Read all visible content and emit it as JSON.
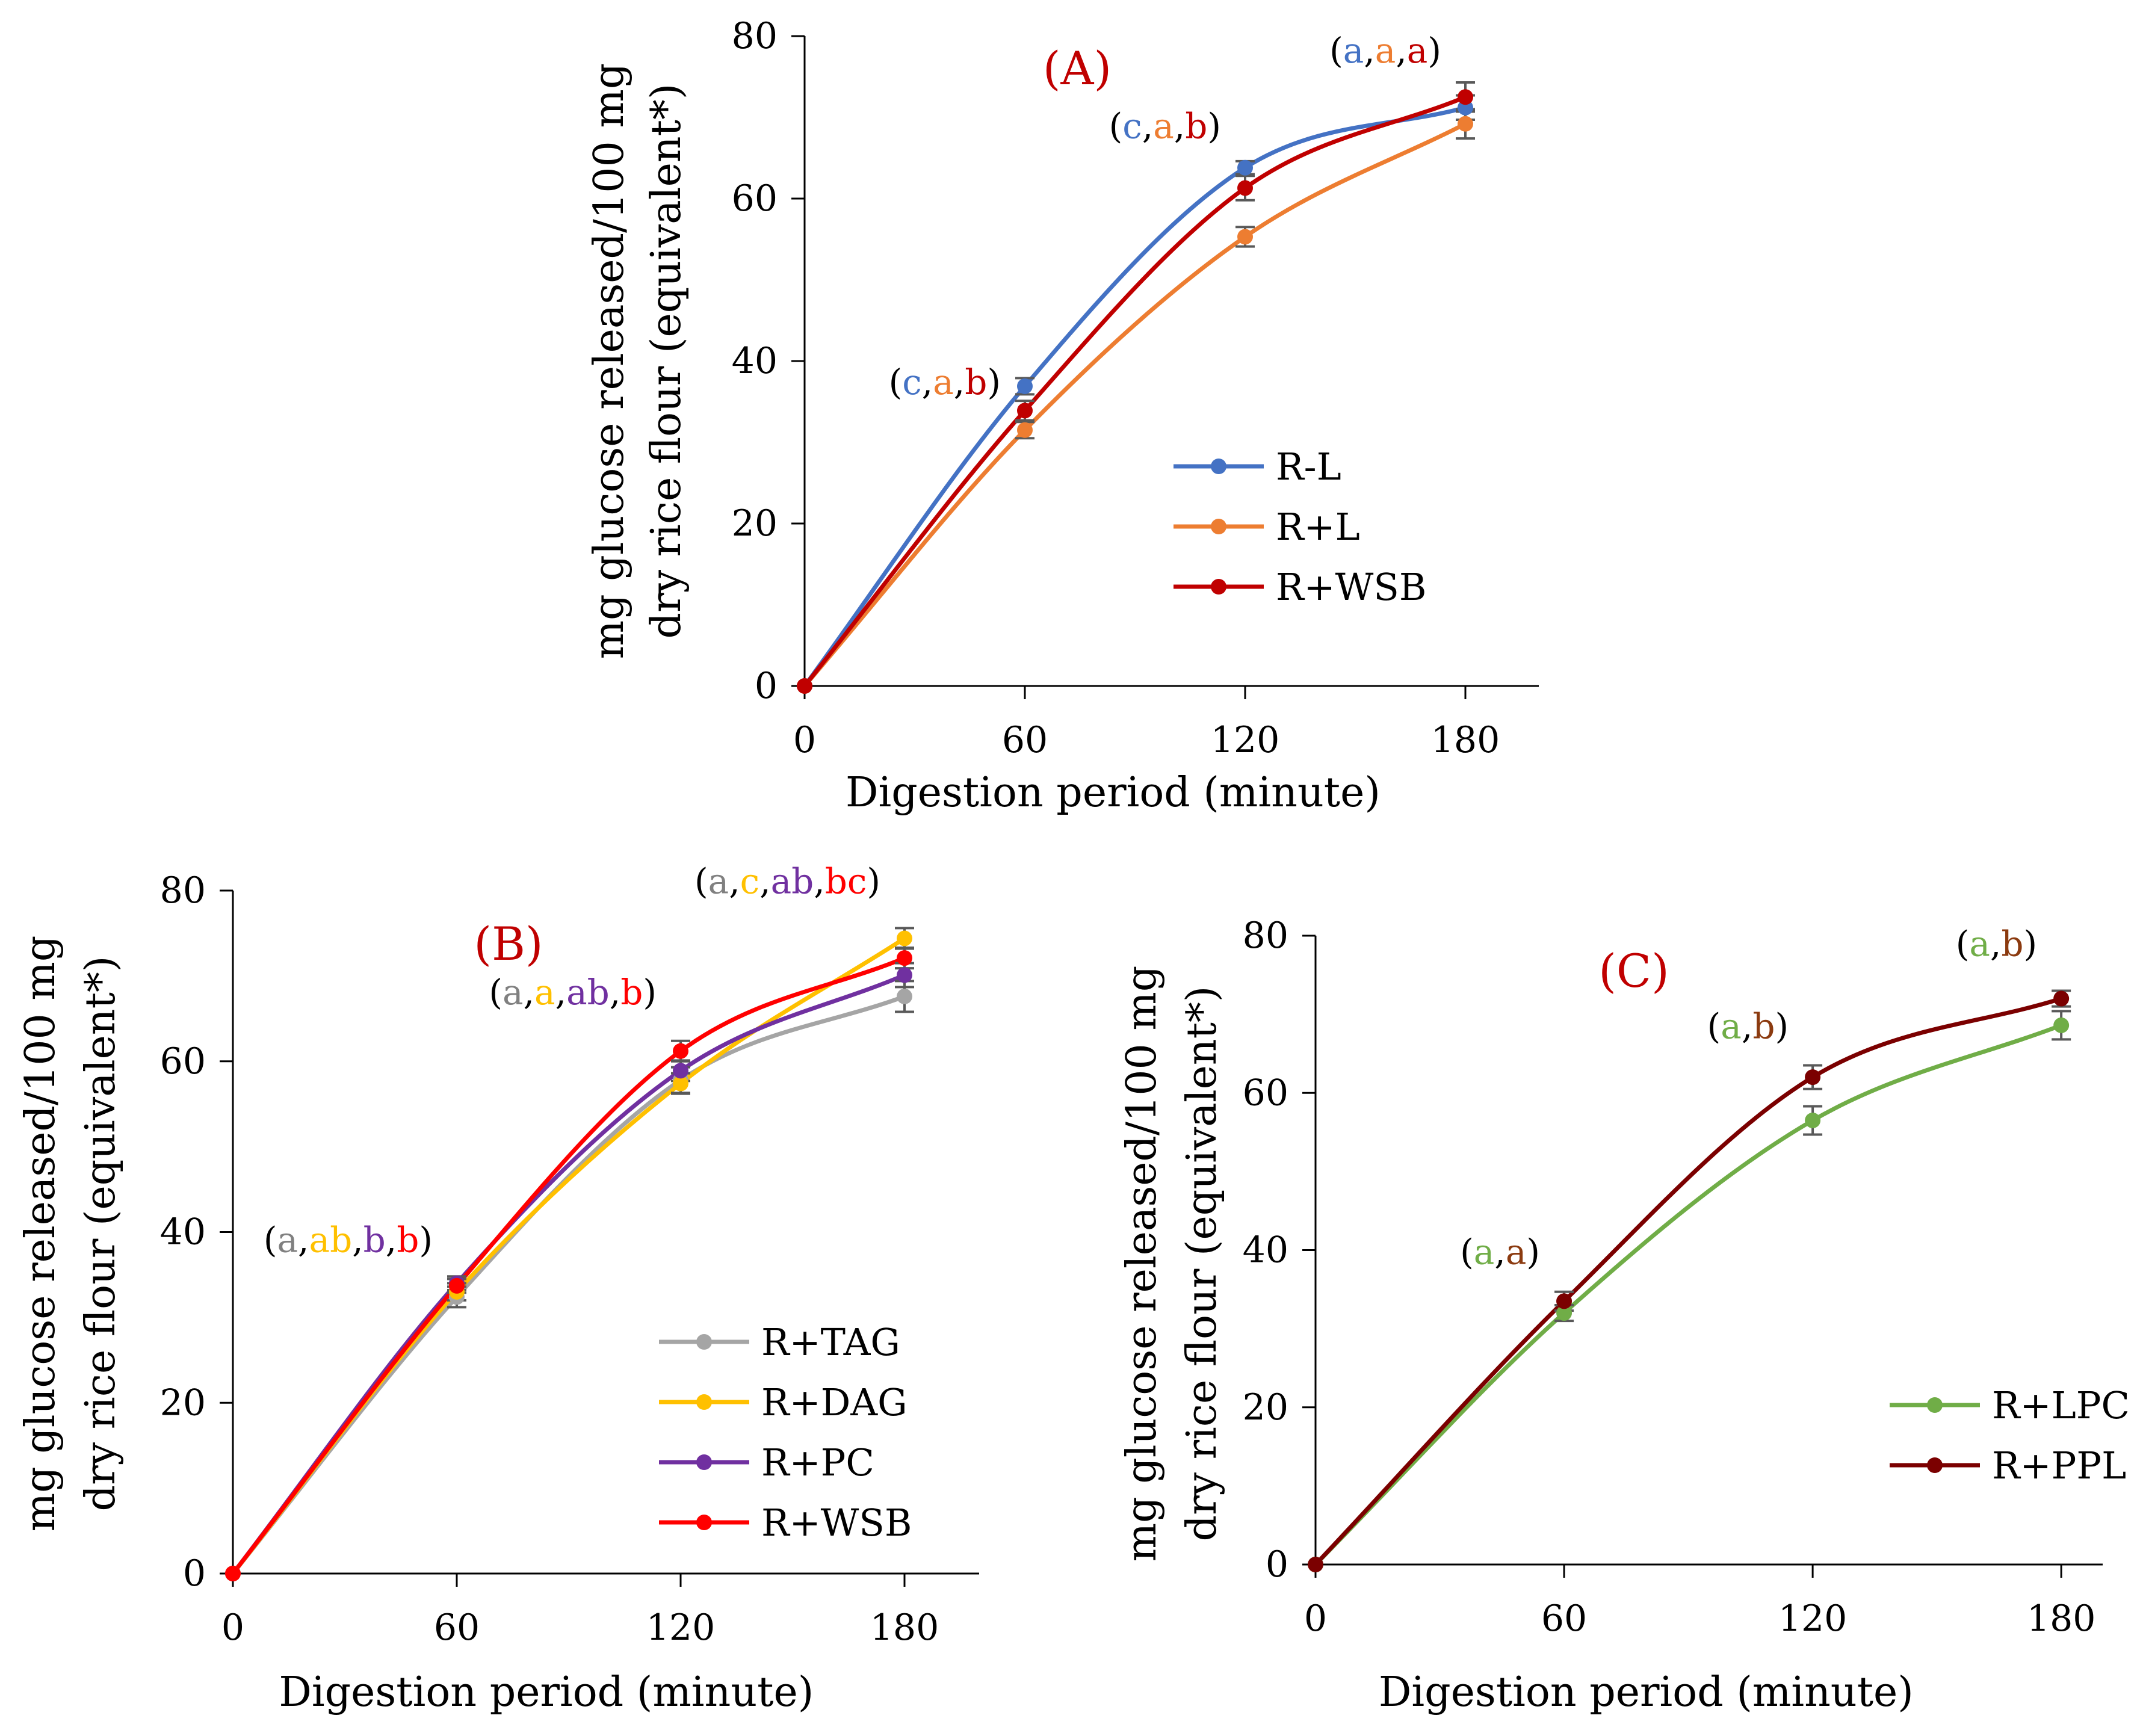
{
  "chart_data": [
    {
      "panel": "A",
      "type": "line",
      "title": "(A)",
      "title_color": "#c00000",
      "xlabel": "Digestion period (minute)",
      "ylabel_lines": [
        "mg glucose released/100 mg",
        "dry rice flour (equivalent*)"
      ],
      "x": [
        0,
        60,
        120,
        180
      ],
      "x_ticks": [
        0,
        60,
        120,
        180
      ],
      "y_ticks": [
        0,
        20,
        40,
        60,
        80
      ],
      "xlim": [
        0,
        200
      ],
      "ylim": [
        0,
        80
      ],
      "legend_position": "center-right",
      "series": [
        {
          "name": "R-L",
          "color": "#4472c4",
          "values": [
            0,
            36.9,
            63.8,
            71.2
          ],
          "errors": [
            0,
            1.0,
            0.8,
            1.5
          ]
        },
        {
          "name": "R+L",
          "color": "#ed7d31",
          "values": [
            0,
            31.5,
            55.3,
            69.2
          ],
          "errors": [
            0,
            1.0,
            1.2,
            1.8
          ]
        },
        {
          "name": "R+WSB",
          "color": "#c00000",
          "values": [
            0,
            33.9,
            61.3,
            72.5
          ],
          "errors": [
            0,
            1.2,
            1.5,
            1.8
          ]
        }
      ],
      "annotations": [
        {
          "x": 60,
          "y": 31.5,
          "parts": [
            {
              "text": "(",
              "color": "#000000"
            },
            {
              "text": "c",
              "color": "#4472c4"
            },
            {
              "text": ",",
              "color": "#000000"
            },
            {
              "text": "a",
              "color": "#ed7d31"
            },
            {
              "text": ",",
              "color": "#000000"
            },
            {
              "text": "b",
              "color": "#c00000"
            },
            {
              "text": ")",
              "color": "#000000"
            }
          ]
        },
        {
          "x": 120,
          "y": 63.0,
          "parts": [
            {
              "text": "(",
              "color": "#000000"
            },
            {
              "text": "c",
              "color": "#4472c4"
            },
            {
              "text": ",",
              "color": "#000000"
            },
            {
              "text": "a",
              "color": "#ed7d31"
            },
            {
              "text": ",",
              "color": "#000000"
            },
            {
              "text": "b",
              "color": "#c00000"
            },
            {
              "text": ")",
              "color": "#000000"
            }
          ]
        },
        {
          "x": 180,
          "y": 72.3,
          "parts": [
            {
              "text": "(",
              "color": "#000000"
            },
            {
              "text": "a",
              "color": "#4472c4"
            },
            {
              "text": ",",
              "color": "#000000"
            },
            {
              "text": "a",
              "color": "#ed7d31"
            },
            {
              "text": ",",
              "color": "#000000"
            },
            {
              "text": "a",
              "color": "#c00000"
            },
            {
              "text": ")",
              "color": "#000000"
            }
          ]
        }
      ]
    },
    {
      "panel": "B",
      "type": "line",
      "title": "(B)",
      "title_color": "#c00000",
      "xlabel": "Digestion period (minute)",
      "ylabel_lines": [
        "mg glucose released/100 mg",
        "dry rice flour (equivalent*)"
      ],
      "x": [
        0,
        60,
        120,
        180
      ],
      "x_ticks": [
        0,
        60,
        120,
        180
      ],
      "y_ticks": [
        0,
        20,
        40,
        60,
        80
      ],
      "xlim": [
        0,
        200
      ],
      "ylim": [
        0,
        80
      ],
      "legend_position": "bottom-right",
      "series": [
        {
          "name": "R+TAG",
          "color": "#a5a5a5",
          "values": [
            0,
            32.4,
            57.8,
            67.6
          ],
          "errors": [
            0,
            1.2,
            1.5,
            1.8
          ]
        },
        {
          "name": "R+DAG",
          "color": "#ffc000",
          "values": [
            0,
            33.0,
            57.4,
            74.4
          ],
          "errors": [
            0,
            1.0,
            1.2,
            1.2
          ]
        },
        {
          "name": "R+PC",
          "color": "#7030a0",
          "values": [
            0,
            34.0,
            58.9,
            70.1
          ],
          "errors": [
            0,
            0.8,
            1.2,
            1.4
          ]
        },
        {
          "name": "R+WSB",
          "color": "#ff0000",
          "values": [
            0,
            33.7,
            61.2,
            72.1
          ],
          "errors": [
            0,
            0.8,
            1.2,
            1.2
          ]
        }
      ],
      "annotations": [
        {
          "x": 60,
          "y": 34.5,
          "parts": [
            {
              "text": "(",
              "color": "#000000"
            },
            {
              "text": "a",
              "color": "#808080"
            },
            {
              "text": ",",
              "color": "#000000"
            },
            {
              "text": "ab",
              "color": "#ffc000"
            },
            {
              "text": ",",
              "color": "#000000"
            },
            {
              "text": "b",
              "color": "#7030a0"
            },
            {
              "text": ",",
              "color": "#000000"
            },
            {
              "text": "b",
              "color": "#ff0000"
            },
            {
              "text": ")",
              "color": "#000000"
            }
          ]
        },
        {
          "x": 120,
          "y": 63.5,
          "parts": [
            {
              "text": "(",
              "color": "#000000"
            },
            {
              "text": "a",
              "color": "#808080"
            },
            {
              "text": ",",
              "color": "#000000"
            },
            {
              "text": "a",
              "color": "#ffc000"
            },
            {
              "text": ",",
              "color": "#000000"
            },
            {
              "text": "ab",
              "color": "#7030a0"
            },
            {
              "text": ",",
              "color": "#000000"
            },
            {
              "text": "b",
              "color": "#ff0000"
            },
            {
              "text": ")",
              "color": "#000000"
            }
          ]
        },
        {
          "x": 180,
          "y": 76.5,
          "parts": [
            {
              "text": "(",
              "color": "#000000"
            },
            {
              "text": "a",
              "color": "#808080"
            },
            {
              "text": ",",
              "color": "#000000"
            },
            {
              "text": "c",
              "color": "#ffc000"
            },
            {
              "text": ",",
              "color": "#000000"
            },
            {
              "text": "ab",
              "color": "#7030a0"
            },
            {
              "text": ",",
              "color": "#000000"
            },
            {
              "text": "bc",
              "color": "#ff0000"
            },
            {
              "text": ")",
              "color": "#000000"
            }
          ]
        }
      ]
    },
    {
      "panel": "C",
      "type": "line",
      "title": "(C)",
      "title_color": "#c00000",
      "xlabel": "Digestion period (minute)",
      "ylabel_lines": [
        "mg glucose released/100 mg",
        "dry rice flour (equivalent*)"
      ],
      "x": [
        0,
        60,
        120,
        180
      ],
      "x_ticks": [
        0,
        60,
        120,
        180
      ],
      "y_ticks": [
        0,
        20,
        40,
        60,
        80
      ],
      "xlim": [
        0,
        190
      ],
      "ylim": [
        0,
        80
      ],
      "legend_position": "bottom-right",
      "series": [
        {
          "name": "R+LPC",
          "color": "#70ad47",
          "values": [
            0,
            32.0,
            56.5,
            68.6
          ],
          "errors": [
            0,
            1.0,
            1.8,
            1.8
          ]
        },
        {
          "name": "R+PPL",
          "color": "#7b0000",
          "values": [
            0,
            33.5,
            62.0,
            72.0
          ],
          "errors": [
            0,
            1.2,
            1.5,
            1.0
          ]
        }
      ],
      "annotations": [
        {
          "x": 60,
          "y": 34.8,
          "parts": [
            {
              "text": "(",
              "color": "#000000"
            },
            {
              "text": "a",
              "color": "#70ad47"
            },
            {
              "text": ",",
              "color": "#000000"
            },
            {
              "text": "a",
              "color": "#8b3a0f"
            },
            {
              "text": ")",
              "color": "#000000"
            }
          ]
        },
        {
          "x": 120,
          "y": 63.5,
          "parts": [
            {
              "text": "(",
              "color": "#000000"
            },
            {
              "text": "a",
              "color": "#70ad47"
            },
            {
              "text": ",",
              "color": "#000000"
            },
            {
              "text": "b",
              "color": "#8b3a0f"
            },
            {
              "text": ")",
              "color": "#000000"
            }
          ]
        },
        {
          "x": 180,
          "y": 74.0,
          "parts": [
            {
              "text": "(",
              "color": "#000000"
            },
            {
              "text": "a",
              "color": "#70ad47"
            },
            {
              "text": ",",
              "color": "#000000"
            },
            {
              "text": "b",
              "color": "#8b3a0f"
            },
            {
              "text": ")",
              "color": "#000000"
            }
          ]
        }
      ]
    }
  ]
}
